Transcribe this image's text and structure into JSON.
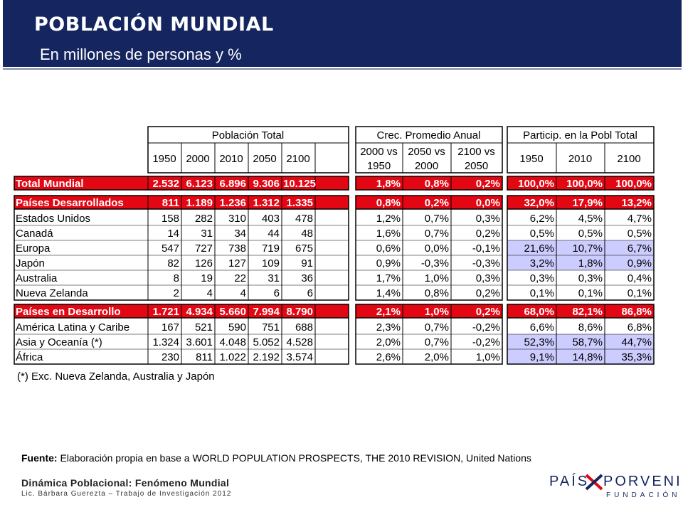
{
  "header": {
    "title": "POBLACIÓN MUNDIAL",
    "subtitle": "En millones de personas y %"
  },
  "table": {
    "group_headers": [
      "Población Total",
      "Crec. Promedio Anual",
      "Particip. en la Pobl Total"
    ],
    "pop_years": [
      "1950",
      "2000",
      "2010",
      "2050",
      "2100"
    ],
    "growth_periods": [
      [
        "2000 vs",
        "1950"
      ],
      [
        "2050 vs",
        "2000"
      ],
      [
        "2100 vs",
        "2050"
      ]
    ],
    "share_years": [
      "1950",
      "2010",
      "2100"
    ],
    "rows": [
      {
        "label": "Total Mundial",
        "style": "total",
        "pop": [
          "2.532",
          "6.123",
          "6.896",
          "9.306",
          "10.125"
        ],
        "growth": [
          "1,8%",
          "0,8%",
          "0,2%"
        ],
        "share": [
          "100,0%",
          "100,0%",
          "100,0%"
        ],
        "hl": [
          false,
          false,
          false
        ]
      },
      {
        "label": "Países Desarrollados",
        "style": "total",
        "pop": [
          "811",
          "1.189",
          "1.236",
          "1.312",
          "1.335"
        ],
        "growth": [
          "0,8%",
          "0,2%",
          "0,0%"
        ],
        "share": [
          "32,0%",
          "17,9%",
          "13,2%"
        ],
        "hl": [
          false,
          false,
          false
        ]
      },
      {
        "label": "Estados Unidos",
        "style": "normal",
        "pop": [
          "158",
          "282",
          "310",
          "403",
          "478"
        ],
        "growth": [
          "1,2%",
          "0,7%",
          "0,3%"
        ],
        "share": [
          "6,2%",
          "4,5%",
          "4,7%"
        ],
        "hl": [
          false,
          false,
          false
        ]
      },
      {
        "label": "Canadá",
        "style": "normal",
        "pop": [
          "14",
          "31",
          "34",
          "44",
          "48"
        ],
        "growth": [
          "1,6%",
          "0,7%",
          "0,2%"
        ],
        "share": [
          "0,5%",
          "0,5%",
          "0,5%"
        ],
        "hl": [
          false,
          false,
          false
        ]
      },
      {
        "label": "Europa",
        "style": "normal",
        "pop": [
          "547",
          "727",
          "738",
          "719",
          "675"
        ],
        "growth": [
          "0,6%",
          "0,0%",
          "-0,1%"
        ],
        "share": [
          "21,6%",
          "10,7%",
          "6,7%"
        ],
        "hl": [
          true,
          true,
          true
        ]
      },
      {
        "label": "Japón",
        "style": "normal",
        "pop": [
          "82",
          "126",
          "127",
          "109",
          "91"
        ],
        "growth": [
          "0,9%",
          "-0,3%",
          "-0,3%"
        ],
        "share": [
          "3,2%",
          "1,8%",
          "0,9%"
        ],
        "hl": [
          true,
          true,
          true
        ]
      },
      {
        "label": "Australia",
        "style": "normal",
        "pop": [
          "8",
          "19",
          "22",
          "31",
          "36"
        ],
        "growth": [
          "1,7%",
          "1,0%",
          "0,3%"
        ],
        "share": [
          "0,3%",
          "0,3%",
          "0,4%"
        ],
        "hl": [
          false,
          false,
          false
        ]
      },
      {
        "label": "Nueva Zelanda",
        "style": "normal",
        "pop": [
          "2",
          "4",
          "4",
          "6",
          "6"
        ],
        "growth": [
          "1,4%",
          "0,8%",
          "0,2%"
        ],
        "share": [
          "0,1%",
          "0,1%",
          "0,1%"
        ],
        "hl": [
          false,
          false,
          false
        ]
      },
      {
        "label": "Países en Desarrollo",
        "style": "total",
        "pop": [
          "1.721",
          "4.934",
          "5.660",
          "7.994",
          "8.790"
        ],
        "growth": [
          "2,1%",
          "1,0%",
          "0,2%"
        ],
        "share": [
          "68,0%",
          "82,1%",
          "86,8%"
        ],
        "hl": [
          false,
          false,
          false
        ]
      },
      {
        "label": "América Latina y Caribe",
        "style": "normal",
        "pop": [
          "167",
          "521",
          "590",
          "751",
          "688"
        ],
        "growth": [
          "2,3%",
          "0,7%",
          "-0,2%"
        ],
        "share": [
          "6,6%",
          "8,6%",
          "6,8%"
        ],
        "hl": [
          false,
          false,
          false
        ]
      },
      {
        "label": "Asia y Oceanía (*)",
        "style": "normal",
        "pop": [
          "1.324",
          "3.601",
          "4.048",
          "5.052",
          "4.528"
        ],
        "growth": [
          "2,0%",
          "0,7%",
          "-0,2%"
        ],
        "share": [
          "52,3%",
          "58,7%",
          "44,7%"
        ],
        "hl": [
          true,
          true,
          true
        ]
      },
      {
        "label": "África",
        "style": "normal",
        "pop": [
          "230",
          "811",
          "1.022",
          "2.192",
          "3.574"
        ],
        "growth": [
          "2,6%",
          "2,0%",
          "1,0%"
        ],
        "share": [
          "9,1%",
          "14,8%",
          "35,3%"
        ],
        "hl": [
          true,
          true,
          true
        ]
      }
    ]
  },
  "note": "(*) Exc. Nueva Zelanda, Australia y Japón",
  "source": {
    "label": "Fuente:",
    "text": " Elaboración propia en base a  WORLD POPULATION PROSPECTS, THE 2010 REVISION, United Nations"
  },
  "footer": {
    "line1": "Dinámica Poblacional: Fenómeno Mundial",
    "line2": "Lic. Bárbara Guerezta – Trabajo de Investigación 2012"
  },
  "logo": {
    "word1": "PAÍS",
    "word2": "PORVENIR",
    "word3": "FUNDACIÓN"
  },
  "colors": {
    "header_bg": "#14255f",
    "total_row_fill": "#e30613",
    "highlight_fill": "#ccccff",
    "logo_red": "#e30613",
    "logo_blue": "#14255f"
  }
}
